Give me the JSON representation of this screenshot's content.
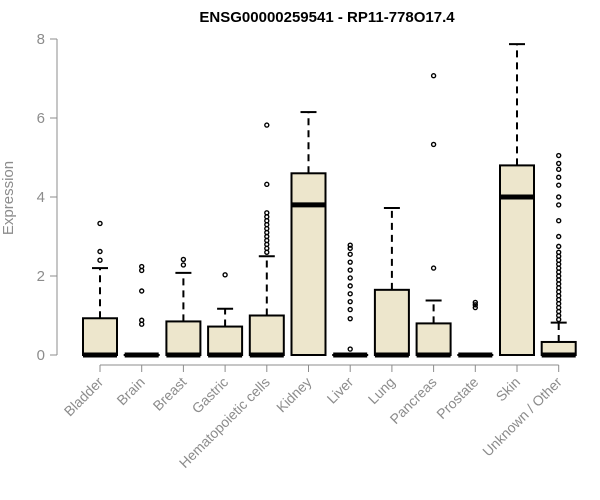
{
  "chart_data": {
    "type": "box",
    "title": "ENSG00000259541 - RP11-778O17.4",
    "ylabel": "Expression",
    "xlabel": "",
    "ylim": [
      0,
      8
    ],
    "yticks": [
      0,
      2,
      4,
      6,
      8
    ],
    "fill_color": "#ede6cc",
    "axis_color": "#8c8c8c",
    "categories": [
      "Bladder",
      "Brain",
      "Breast",
      "Gastric",
      "Hematopoietic cells",
      "Kidney",
      "Liver",
      "Lung",
      "Pancreas",
      "Prostate",
      "Skin",
      "Unknown / Other"
    ],
    "boxes": [
      {
        "q1": 0,
        "median": 0,
        "q3": 0.93,
        "whisker_low": 0,
        "whisker_high": 2.2,
        "outliers": [
          2.4,
          2.62,
          3.33
        ]
      },
      {
        "q1": 0,
        "median": 0,
        "q3": 0,
        "whisker_low": 0,
        "whisker_high": 0,
        "outliers": [
          0.78,
          0.88,
          1.62,
          2.14,
          2.24
        ]
      },
      {
        "q1": 0,
        "median": 0,
        "q3": 0.85,
        "whisker_low": 0,
        "whisker_high": 2.08,
        "outliers": [
          2.28,
          2.42
        ]
      },
      {
        "q1": 0,
        "median": 0,
        "q3": 0.72,
        "whisker_low": 0,
        "whisker_high": 1.17,
        "outliers": [
          2.03
        ]
      },
      {
        "q1": 0,
        "median": 0,
        "q3": 1.0,
        "whisker_low": 0,
        "whisker_high": 2.5,
        "outliers": [
          2.6,
          2.7,
          2.8,
          2.9,
          3.0,
          3.1,
          3.2,
          3.3,
          3.4,
          3.5,
          3.6,
          4.32,
          5.82
        ]
      },
      {
        "q1": 0,
        "median": 3.8,
        "q3": 4.6,
        "whisker_low": 0,
        "whisker_high": 6.15,
        "outliers": []
      },
      {
        "q1": 0,
        "median": 0,
        "q3": 0,
        "whisker_low": 0,
        "whisker_high": 0,
        "outliers": [
          0.15,
          0.92,
          1.15,
          1.35,
          1.55,
          1.75,
          1.95,
          2.15,
          2.35,
          2.55,
          2.7,
          2.78
        ]
      },
      {
        "q1": 0,
        "median": 0,
        "q3": 1.65,
        "whisker_low": 0,
        "whisker_high": 3.72,
        "outliers": []
      },
      {
        "q1": 0,
        "median": 0,
        "q3": 0.8,
        "whisker_low": 0,
        "whisker_high": 1.38,
        "outliers": [
          2.2,
          5.33,
          7.07
        ]
      },
      {
        "q1": 0,
        "median": 0,
        "q3": 0,
        "whisker_low": 0,
        "whisker_high": 0,
        "outliers": [
          1.2,
          1.27,
          1.33
        ]
      },
      {
        "q1": 0,
        "median": 4.0,
        "q3": 4.8,
        "whisker_low": 0,
        "whisker_high": 7.87,
        "outliers": []
      },
      {
        "q1": 0,
        "median": 0,
        "q3": 0.33,
        "whisker_low": 0,
        "whisker_high": 0.82,
        "outliers": [
          0.9,
          1.0,
          1.1,
          1.2,
          1.3,
          1.4,
          1.5,
          1.6,
          1.7,
          1.8,
          1.9,
          2.0,
          2.1,
          2.2,
          2.3,
          2.4,
          2.5,
          2.6,
          2.75,
          3.0,
          3.4,
          3.8,
          4.0,
          4.3,
          4.5,
          4.7,
          4.85,
          5.05
        ]
      }
    ]
  }
}
